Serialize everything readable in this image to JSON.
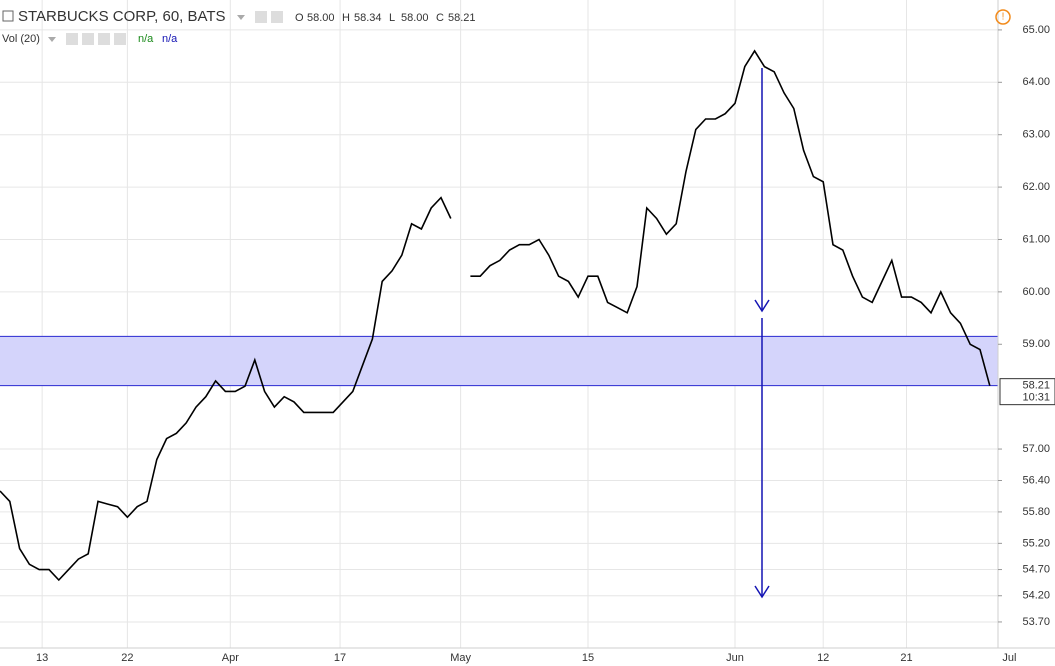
{
  "header": {
    "symbol": "STARBUCKS CORP, 60, BATS",
    "ohlc": [
      {
        "key": "O",
        "value": "58.00"
      },
      {
        "key": "H",
        "value": "58.34"
      },
      {
        "key": "L",
        "value": "58.00"
      },
      {
        "key": "C",
        "value": "58.21"
      }
    ],
    "volume_label": "Vol (20)",
    "volume_values": [
      "n/a",
      "n/a"
    ]
  },
  "chart_data": {
    "type": "line",
    "color": "#000000",
    "values": [
      56.2,
      56.0,
      55.1,
      54.8,
      54.7,
      54.7,
      54.5,
      54.7,
      54.9,
      55.0,
      56.0,
      55.95,
      55.9,
      55.7,
      55.9,
      56.0,
      56.8,
      57.2,
      57.3,
      57.5,
      57.8,
      58.0,
      58.3,
      58.1,
      58.1,
      58.2,
      58.7,
      58.1,
      57.8,
      58.0,
      57.9,
      57.7,
      57.7,
      57.7,
      57.7,
      57.9,
      58.1,
      58.6,
      59.1,
      60.2,
      60.4,
      60.7,
      61.3,
      61.2,
      61.6,
      61.8,
      61.4,
      null,
      60.3,
      60.3,
      60.5,
      60.6,
      60.8,
      60.9,
      60.9,
      61.0,
      60.7,
      60.3,
      60.2,
      59.9,
      60.3,
      60.3,
      59.8,
      59.7,
      59.6,
      60.1,
      61.6,
      61.4,
      61.1,
      61.3,
      62.3,
      63.1,
      63.3,
      63.3,
      63.4,
      63.6,
      64.3,
      64.6,
      64.3,
      64.2,
      63.8,
      63.5,
      62.7,
      62.2,
      62.1,
      60.9,
      60.8,
      60.3,
      59.9,
      59.8,
      60.2,
      60.6,
      59.9,
      59.9,
      59.8,
      59.6,
      60.0,
      59.6,
      59.4,
      59.0,
      58.9,
      58.21
    ],
    "xlim": [
      0,
      104
    ],
    "xticks": [
      {
        "value": 4.3,
        "label": "13"
      },
      {
        "value": 13,
        "label": "22"
      },
      {
        "value": 23.5,
        "label": "Apr"
      },
      {
        "value": 34.7,
        "label": "17"
      },
      {
        "value": 47,
        "label": "May"
      },
      {
        "value": 60,
        "label": "15"
      },
      {
        "value": 75,
        "label": "Jun"
      },
      {
        "value": 84,
        "label": "12"
      },
      {
        "value": 92.5,
        "label": "21"
      },
      {
        "value": 103,
        "label": "Jul"
      }
    ],
    "ylim": [
      53.26,
      65.38
    ],
    "yticks": [
      {
        "value": 65,
        "label": "65.00"
      },
      {
        "value": 64,
        "label": "64.00"
      },
      {
        "value": 63,
        "label": "63.00"
      },
      {
        "value": 62,
        "label": "62.00"
      },
      {
        "value": 61,
        "label": "61.00"
      },
      {
        "value": 60,
        "label": "60.00"
      },
      {
        "value": 59,
        "label": "59.00"
      },
      {
        "value": 57,
        "label": "57.00"
      },
      {
        "value": 56.4,
        "label": "56.40"
      },
      {
        "value": 55.8,
        "label": "55.80"
      },
      {
        "value": 55.2,
        "label": "55.20"
      },
      {
        "value": 54.7,
        "label": "54.70"
      },
      {
        "value": 54.2,
        "label": "54.20"
      },
      {
        "value": 53.7,
        "label": "53.70"
      }
    ],
    "grid": true,
    "band": [
      58.21,
      59.15
    ],
    "band_color": "#d4d4fb",
    "price_tag": {
      "price": 58.21,
      "time": "10:31"
    }
  }
}
